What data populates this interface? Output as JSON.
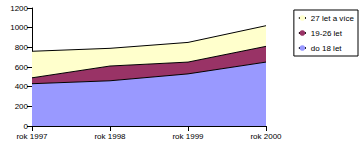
{
  "chart_data": {
    "type": "area",
    "stacked": true,
    "categories": [
      "rok 1997",
      "rok 1998",
      "rok 1999",
      "rok 2000"
    ],
    "series": [
      {
        "name": "do 18 let",
        "color": "#9999ff",
        "values": [
          430,
          460,
          530,
          650
        ]
      },
      {
        "name": "19-26 let",
        "color": "#993366",
        "values": [
          60,
          150,
          120,
          160
        ]
      },
      {
        "name": "27 let a více",
        "color": "#ffffcc",
        "values": [
          270,
          180,
          200,
          210
        ]
      }
    ],
    "ylim": [
      0,
      1200
    ],
    "yticks": [
      0,
      200,
      400,
      600,
      800,
      1000,
      1200
    ],
    "grid": false,
    "legend": "right"
  }
}
